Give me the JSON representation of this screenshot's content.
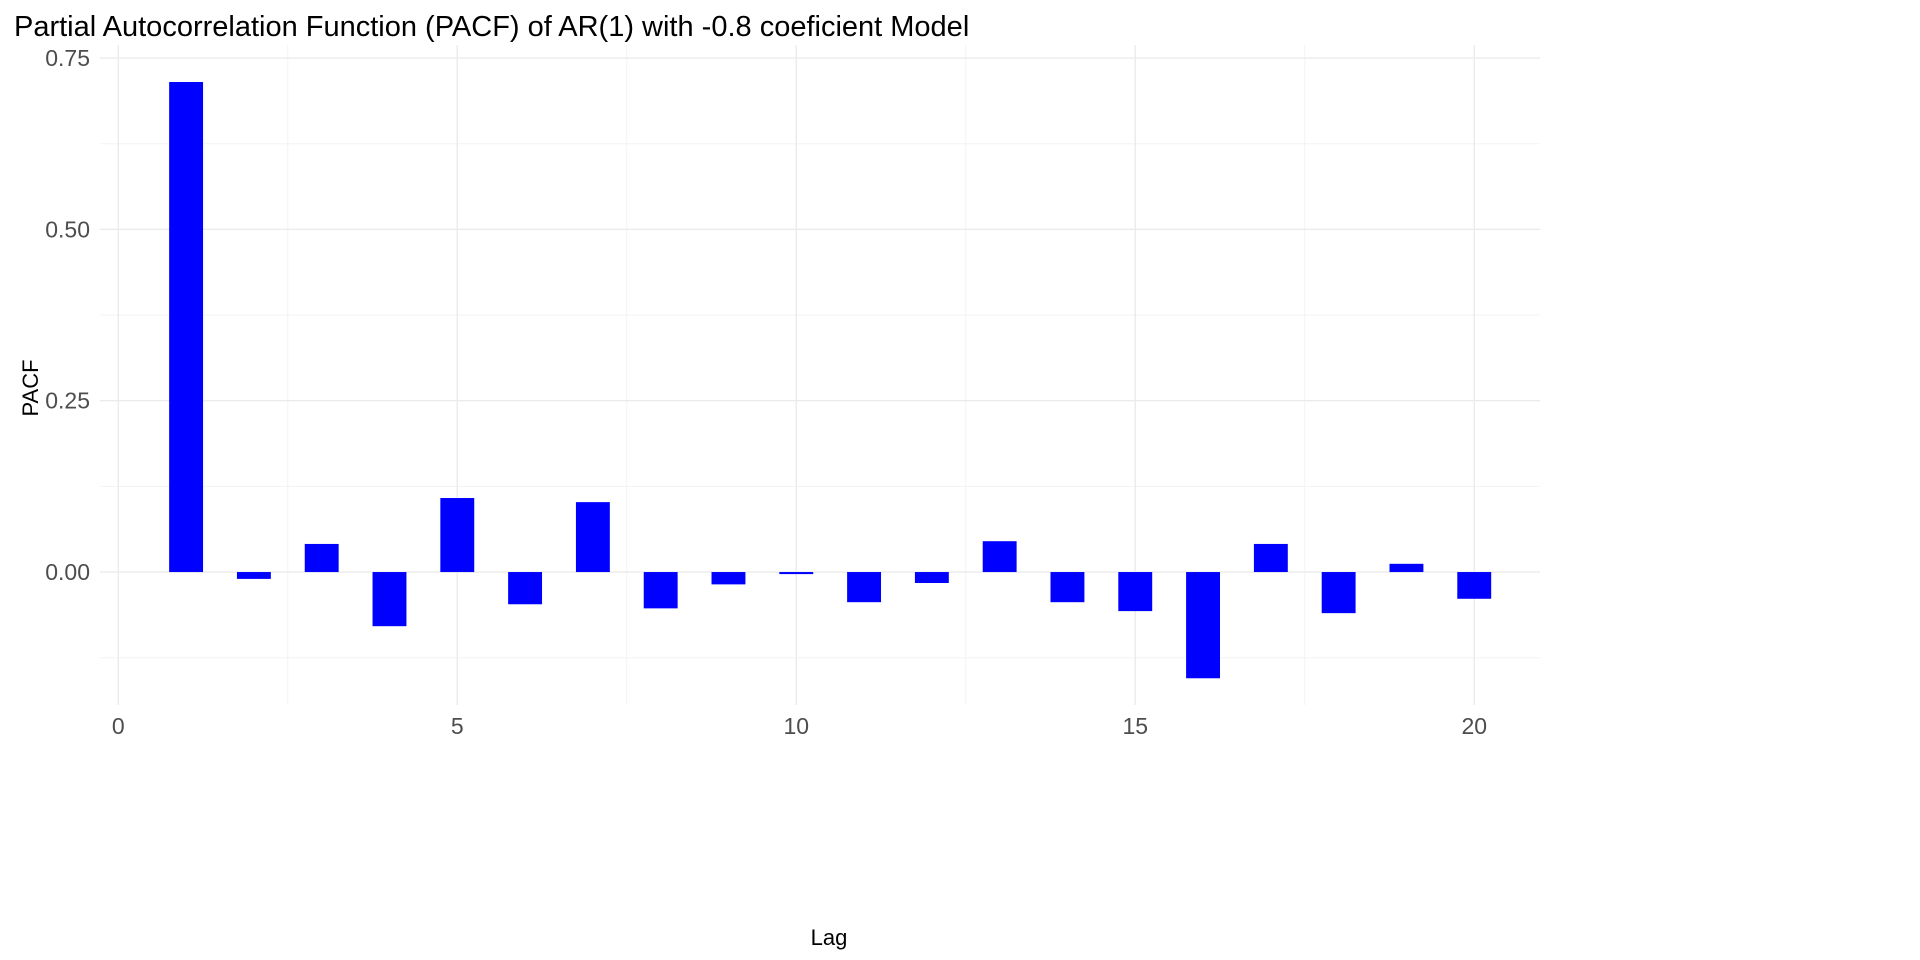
{
  "chart_data": {
    "type": "bar",
    "title": "Partial Autocorrelation Function (PACF) of AR(1) with -0.8 coeficient Model",
    "xlabel": "Lag",
    "ylabel": "PACF",
    "x": [
      1,
      2,
      3,
      4,
      5,
      6,
      7,
      8,
      9,
      10,
      11,
      12,
      13,
      14,
      15,
      16,
      17,
      18,
      19,
      20
    ],
    "values": [
      0.715,
      -0.01,
      0.041,
      -0.079,
      0.108,
      -0.047,
      0.102,
      -0.053,
      -0.018,
      -0.003,
      -0.044,
      -0.016,
      0.045,
      -0.044,
      -0.057,
      -0.155,
      0.041,
      -0.06,
      0.012,
      -0.039
    ],
    "xlim": [
      -0.27,
      20.97
    ],
    "ylim": [
      -0.194,
      0.769
    ],
    "xticks": [
      0,
      5,
      10,
      15,
      20
    ],
    "xtick_labels": [
      "0",
      "5",
      "10",
      "15",
      "20"
    ],
    "yticks": [
      0,
      0.25,
      0.5,
      0.75
    ],
    "ytick_labels": [
      "0.00",
      "0.25",
      "0.50",
      "0.75"
    ],
    "bar_width": 0.5,
    "bar_color": "#0000FF",
    "grid": true
  }
}
